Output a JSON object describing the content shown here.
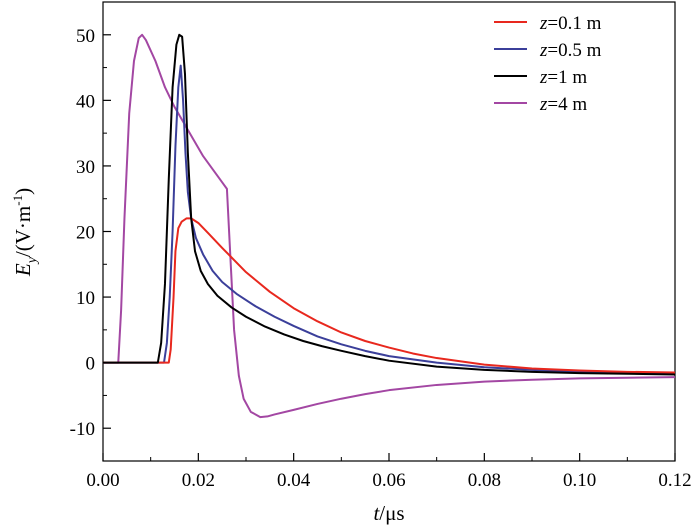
{
  "chart_data": {
    "type": "line",
    "xlabel_var": "t",
    "xlabel_unit": "/μs",
    "ylabel_var": "E",
    "ylabel_sub": "y",
    "ylabel_unit": "/(V·m",
    "ylabel_exp": "-1",
    "ylabel_close": ")",
    "xlim": [
      0,
      0.12
    ],
    "ylim": [
      -15,
      55
    ],
    "x_ticks": [
      0.0,
      0.02,
      0.04,
      0.06,
      0.08,
      0.1,
      0.12
    ],
    "x_tick_labels": [
      "0.00",
      "0.02",
      "0.04",
      "0.06",
      "0.08",
      "0.10",
      "0.12"
    ],
    "y_ticks": [
      -10,
      0,
      10,
      20,
      30,
      40,
      50
    ],
    "y_tick_labels": [
      "-10",
      "0",
      "10",
      "20",
      "30",
      "40",
      "50"
    ],
    "grid": false,
    "legend_position": "top-right",
    "series": [
      {
        "name": "z=0.1 m",
        "legend_var": "z",
        "legend_text": "=0.1 m",
        "color": "#e8281e",
        "x": [
          0,
          0.0138,
          0.0142,
          0.0148,
          0.0152,
          0.0158,
          0.0165,
          0.0175,
          0.0185,
          0.02,
          0.022,
          0.025,
          0.03,
          0.035,
          0.04,
          0.045,
          0.05,
          0.055,
          0.06,
          0.065,
          0.07,
          0.08,
          0.09,
          0.1,
          0.11,
          0.12
        ],
        "y": [
          0,
          0,
          2,
          10,
          17,
          20.5,
          21.5,
          22,
          22,
          21.3,
          19.8,
          17.5,
          13.8,
          10.8,
          8.3,
          6.3,
          4.6,
          3.3,
          2.3,
          1.4,
          0.7,
          -0.3,
          -0.9,
          -1.2,
          -1.4,
          -1.5
        ]
      },
      {
        "name": "z=0.5 m",
        "legend_var": "z",
        "legend_text": "=0.5 m",
        "color": "#3b3f9a",
        "x": [
          0,
          0.0128,
          0.0134,
          0.014,
          0.0146,
          0.0152,
          0.0158,
          0.0163,
          0.0168,
          0.0173,
          0.0178,
          0.0185,
          0.0195,
          0.021,
          0.023,
          0.025,
          0.028,
          0.032,
          0.036,
          0.04,
          0.045,
          0.05,
          0.055,
          0.06,
          0.07,
          0.08,
          0.09,
          0.1,
          0.11,
          0.12
        ],
        "y": [
          0,
          0,
          3,
          10,
          20,
          33,
          42,
          45.3,
          40,
          32,
          26,
          22,
          19,
          16.5,
          14,
          12.3,
          10.5,
          8.6,
          7,
          5.6,
          4,
          2.8,
          1.8,
          1,
          0,
          -0.7,
          -1.1,
          -1.4,
          -1.6,
          -1.7
        ]
      },
      {
        "name": "z=1 m",
        "legend_var": "z",
        "legend_text": "=1 m",
        "color": "#000000",
        "x": [
          0,
          0.0115,
          0.0122,
          0.013,
          0.0138,
          0.0146,
          0.0154,
          0.016,
          0.0166,
          0.0172,
          0.0178,
          0.0185,
          0.0193,
          0.0205,
          0.022,
          0.024,
          0.027,
          0.03,
          0.034,
          0.038,
          0.042,
          0.046,
          0.05,
          0.055,
          0.06,
          0.07,
          0.08,
          0.09,
          0.1,
          0.11,
          0.12
        ],
        "y": [
          0,
          0,
          3,
          12,
          28,
          42,
          48.5,
          50,
          49.7,
          44,
          32,
          22,
          17,
          14,
          12,
          10.2,
          8.4,
          7,
          5.5,
          4.3,
          3.3,
          2.5,
          1.8,
          1,
          0.3,
          -0.6,
          -1.1,
          -1.4,
          -1.6,
          -1.7,
          -1.8
        ]
      },
      {
        "name": "z=4 m",
        "legend_var": "z",
        "legend_text": "=4 m",
        "color": "#a347a3",
        "x": [
          0,
          0.0032,
          0.0038,
          0.0045,
          0.0055,
          0.0065,
          0.0075,
          0.0082,
          0.009,
          0.011,
          0.013,
          0.015,
          0.017,
          0.019,
          0.021,
          0.023,
          0.025,
          0.026,
          0.0268,
          0.0275,
          0.0285,
          0.0295,
          0.031,
          0.033,
          0.0345,
          0.036,
          0.04,
          0.045,
          0.05,
          0.055,
          0.06,
          0.07,
          0.08,
          0.09,
          0.1,
          0.11,
          0.12
        ],
        "y": [
          0,
          0,
          8,
          22,
          38,
          46,
          49.5,
          50,
          49.2,
          46,
          42,
          39,
          36.5,
          34,
          31.5,
          29.5,
          27.5,
          26.5,
          15,
          5,
          -2,
          -5.5,
          -7.5,
          -8.3,
          -8.2,
          -7.9,
          -7.2,
          -6.3,
          -5.5,
          -4.8,
          -4.2,
          -3.4,
          -2.9,
          -2.6,
          -2.4,
          -2.3,
          -2.2
        ]
      }
    ]
  }
}
